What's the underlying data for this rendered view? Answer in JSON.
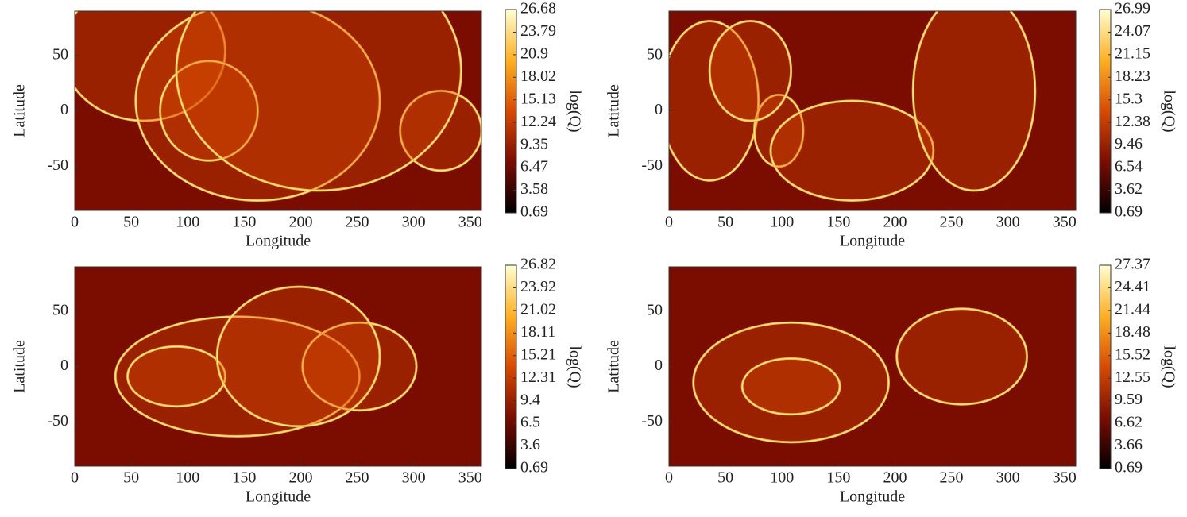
{
  "chart_data": [
    {
      "type": "heatmap",
      "xlabel": "Longitude",
      "ylabel": "Latitude",
      "colorbar_label": "log(Q)",
      "xlim": [
        0,
        360
      ],
      "ylim": [
        -90,
        90
      ],
      "xticks": [
        0,
        50,
        100,
        150,
        200,
        250,
        300,
        350
      ],
      "yticks": [
        -50,
        0,
        50
      ],
      "clim": [
        0.69,
        26.68
      ],
      "cticks": [
        0.69,
        3.58,
        6.47,
        9.35,
        12.24,
        15.13,
        18.02,
        20.9,
        23.79,
        26.68
      ],
      "colormap": [
        "#000000",
        "#7a0c00",
        "#d84a00",
        "#ffb020",
        "#ffffd0"
      ]
    },
    {
      "type": "heatmap",
      "xlabel": "Longitude",
      "ylabel": "Latitude",
      "colorbar_label": "log(Q)",
      "xlim": [
        0,
        360
      ],
      "ylim": [
        -90,
        90
      ],
      "xticks": [
        0,
        50,
        100,
        150,
        200,
        250,
        300,
        350
      ],
      "yticks": [
        -50,
        0,
        50
      ],
      "clim": [
        0.69,
        26.99
      ],
      "cticks": [
        0.69,
        3.62,
        6.54,
        9.46,
        12.38,
        15.3,
        18.23,
        21.15,
        24.07,
        26.99
      ],
      "colormap": [
        "#000000",
        "#7a0c00",
        "#d84a00",
        "#ffb020",
        "#ffffd0"
      ]
    },
    {
      "type": "heatmap",
      "xlabel": "Longitude",
      "ylabel": "Latitude",
      "colorbar_label": "log(Q)",
      "xlim": [
        0,
        360
      ],
      "ylim": [
        -90,
        90
      ],
      "xticks": [
        0,
        50,
        100,
        150,
        200,
        250,
        300,
        350
      ],
      "yticks": [
        -50,
        0,
        50
      ],
      "clim": [
        0.69,
        26.82
      ],
      "cticks": [
        0.69,
        3.6,
        6.5,
        9.4,
        12.31,
        15.21,
        18.11,
        21.02,
        23.92,
        26.82
      ],
      "colormap": [
        "#000000",
        "#7a0c00",
        "#d84a00",
        "#ffb020",
        "#ffffd0"
      ]
    },
    {
      "type": "heatmap",
      "xlabel": "Longitude",
      "ylabel": "Latitude",
      "colorbar_label": "log(Q)",
      "xlim": [
        0,
        360
      ],
      "ylim": [
        -90,
        90
      ],
      "xticks": [
        0,
        50,
        100,
        150,
        200,
        250,
        300,
        350
      ],
      "yticks": [
        -50,
        0,
        50
      ],
      "clim": [
        0.69,
        27.37
      ],
      "cticks": [
        0.69,
        3.66,
        6.62,
        9.59,
        12.55,
        15.52,
        18.48,
        21.44,
        24.41,
        27.37
      ],
      "colormap": [
        "#000000",
        "#7a0c00",
        "#d84a00",
        "#ffb020",
        "#ffffd0"
      ]
    }
  ]
}
